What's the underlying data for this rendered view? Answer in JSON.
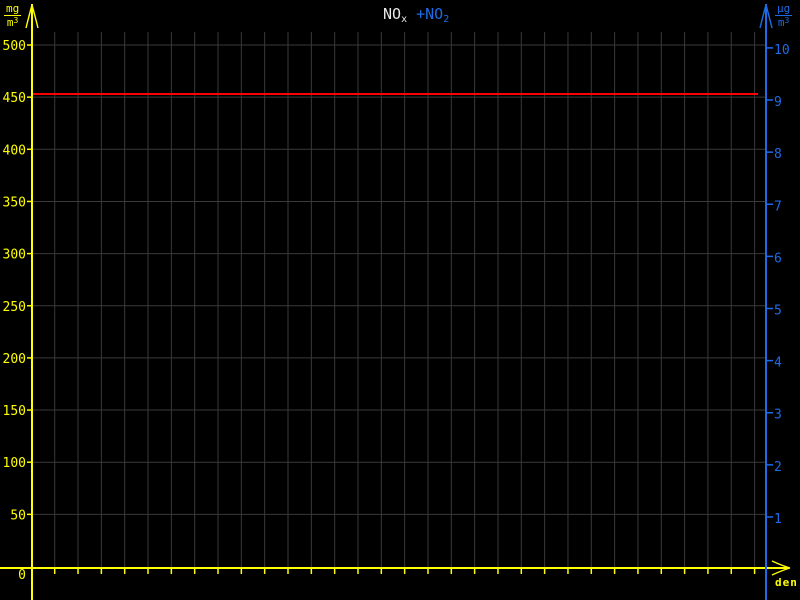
{
  "chart_data": {
    "type": "line",
    "title": {
      "series1": {
        "base": "NO",
        "sub": "x",
        "color": "#e8e8e8"
      },
      "series2": {
        "base": "+NO",
        "sub": "2",
        "color": "#1e6be6"
      }
    },
    "left_axis": {
      "unit": {
        "numerator": "mg",
        "denominator_base": "m",
        "denominator_sup": "3"
      },
      "ticks": [
        0,
        50,
        100,
        150,
        200,
        250,
        300,
        350,
        400,
        450,
        500
      ],
      "range": [
        0,
        512
      ],
      "origin_label": "0",
      "color": "#ffff00"
    },
    "right_axis": {
      "unit": {
        "numerator": "µg",
        "denominator_base": "m",
        "denominator_sup": "3"
      },
      "ticks": [
        1,
        2,
        3,
        4,
        5,
        6,
        7,
        8,
        9,
        10
      ],
      "range": [
        0,
        10.3
      ],
      "color": "#1e6be6"
    },
    "x_axis": {
      "label": "den",
      "tick_count": 31,
      "labels_shown": false,
      "color": "#ffff00"
    },
    "series": [
      {
        "name": "NOx",
        "style": "constant-horizontal-line",
        "color": "#ff0000",
        "axis": "left",
        "value": 453,
        "value_right_axis_equivalent": 9.05,
        "x_start_day": 1,
        "x_end_day": 31
      }
    ],
    "grid": {
      "on": true,
      "color": "#3a3a3a",
      "vertical_lines": 31,
      "horizontal_lines": 10
    },
    "background_color": "#000000"
  }
}
